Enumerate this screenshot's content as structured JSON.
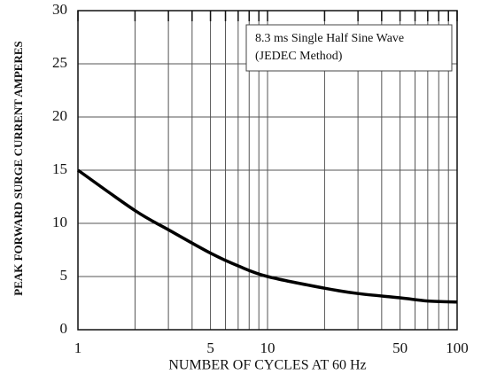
{
  "chart_data": {
    "type": "line",
    "ylabel": "PEAK FORWARD SURGE CURRENT AMPERES",
    "xlabel": "NUMBER OF CYCLES AT 60 Hz",
    "annotation": [
      "8.3 ms Single Half Sine Wave",
      "(JEDEC Method)"
    ],
    "xscale": "log",
    "xlim": [
      1,
      100
    ],
    "xticks": [
      1,
      5,
      10,
      50,
      100
    ],
    "x_minor_grid": [
      2,
      3,
      4,
      6,
      7,
      8,
      9,
      20,
      30,
      40,
      60,
      70,
      80,
      90
    ],
    "ylim": [
      0,
      30
    ],
    "yticks": [
      0,
      5,
      10,
      15,
      20,
      25,
      30
    ],
    "grid": true,
    "x": [
      1,
      2,
      3,
      5,
      7,
      10,
      20,
      30,
      50,
      70,
      100
    ],
    "series": [
      {
        "color": "#000000",
        "values": [
          15,
          11.2,
          9.4,
          7.2,
          6.0,
          5.0,
          3.9,
          3.4,
          3.0,
          2.7,
          2.6
        ]
      }
    ]
  }
}
